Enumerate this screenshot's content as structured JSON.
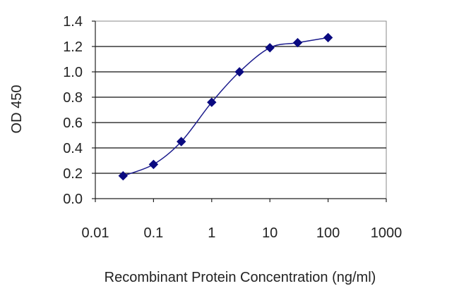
{
  "chart_data": {
    "type": "line",
    "title": "",
    "xlabel": "Recombinant Protein Concentration (ng/ml)",
    "ylabel": "OD 450",
    "xscale": "log",
    "xlim": [
      0.01,
      1000
    ],
    "ylim": [
      0.0,
      1.4
    ],
    "grid": "horizontal",
    "legend": "none",
    "x_tick_labels": [
      "0.01",
      "0.1",
      "1",
      "10",
      "100",
      "1000"
    ],
    "y_tick_labels": [
      "0.0",
      "0.2",
      "0.4",
      "0.6",
      "0.8",
      "1.0",
      "1.2",
      "1.4"
    ],
    "series": [
      {
        "x": [
          0.03,
          0.1,
          0.3,
          1,
          3,
          10,
          30,
          100
        ],
        "y": [
          0.18,
          0.27,
          0.45,
          0.76,
          1.0,
          1.19,
          1.23,
          1.27
        ]
      }
    ],
    "colors": {
      "series": "#1a1a8c",
      "marker": "#0a0a80",
      "grid": "#111111",
      "plot_border": "#888888"
    }
  }
}
